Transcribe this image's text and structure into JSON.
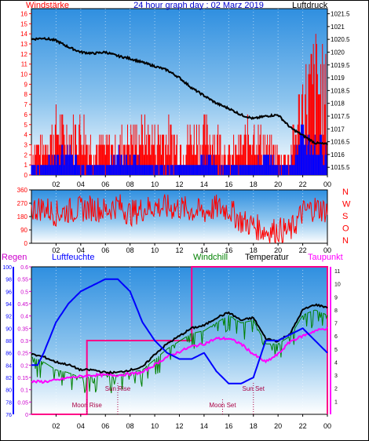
{
  "chart_data": [
    {
      "type": "line",
      "title": "24 hour graph day : 02 Marz 2019",
      "left_label": "Windstärke",
      "right_label": "Luftdruck",
      "x_ticks": [
        "02",
        "04",
        "06",
        "08",
        "10",
        "12",
        "14",
        "16",
        "18",
        "20",
        "22",
        "00"
      ],
      "y_left_ticks": [
        "0",
        "1",
        "2",
        "3",
        "4",
        "5",
        "6",
        "7",
        "8",
        "9",
        "10",
        "11",
        "12",
        "13",
        "14",
        "15",
        "16"
      ],
      "y_left_range": [
        0,
        16.5
      ],
      "y_right_ticks": [
        "1015.5",
        "1016",
        "1016.5",
        "1017",
        "1017.5",
        "1018",
        "1018.5",
        "1019",
        "1019.5",
        "1020",
        "1020.5",
        "1021",
        "1021.5"
      ],
      "y_right_range": [
        1015.2,
        1021.7
      ],
      "series": [
        {
          "name": "",
          "color": "#000000",
          "axis": "right",
          "x": [
            0,
            1,
            2,
            3,
            4,
            5,
            6,
            7,
            8,
            9,
            10,
            11,
            12,
            13,
            14,
            15,
            16,
            17,
            18,
            19,
            20,
            21,
            22,
            23,
            24
          ],
          "values": [
            1020.5,
            1020.55,
            1020.45,
            1020.2,
            1020.0,
            1019.95,
            1020.0,
            1019.85,
            1019.75,
            1019.6,
            1019.45,
            1019.3,
            1019.0,
            1018.6,
            1018.3,
            1018.0,
            1017.8,
            1017.55,
            1017.4,
            1017.5,
            1017.55,
            1017.05,
            1016.75,
            1016.45,
            1016.4
          ]
        },
        {
          "name": "",
          "color": "#ff0000",
          "axis": "left",
          "x": [
            0,
            1,
            2,
            3,
            4,
            5,
            6,
            7,
            8,
            9,
            10,
            11,
            12,
            13,
            14,
            15,
            16,
            17,
            18,
            19,
            20,
            21,
            22,
            23,
            24
          ],
          "values": [
            3,
            3,
            5,
            4,
            5,
            3,
            3,
            3,
            4,
            4,
            4,
            4,
            3,
            4,
            4,
            4,
            2,
            3,
            5,
            3,
            2,
            2,
            8,
            10,
            8
          ]
        },
        {
          "name": "",
          "color": "#0000ff",
          "axis": "left",
          "x": [
            0,
            1,
            2,
            3,
            4,
            5,
            6,
            7,
            8,
            9,
            10,
            11,
            12,
            13,
            14,
            15,
            16,
            17,
            18,
            19,
            20,
            21,
            22,
            23,
            24
          ],
          "values": [
            1,
            1,
            2,
            2,
            1,
            1,
            1,
            2,
            2,
            1,
            1,
            1,
            1,
            1,
            2,
            1,
            1,
            1,
            1,
            2,
            1,
            1,
            4,
            3,
            3
          ]
        }
      ]
    },
    {
      "type": "line",
      "x_ticks": [
        "02",
        "04",
        "06",
        "08",
        "10",
        "12",
        "14",
        "16",
        "18",
        "20",
        "22",
        "00"
      ],
      "y_ticks": [
        "0",
        "90",
        "180",
        "270",
        "360"
      ],
      "y_range": [
        0,
        360
      ],
      "right_labels": [
        "N",
        "W",
        "S",
        "O",
        "N"
      ],
      "series": [
        {
          "name": "",
          "color": "#ff0000",
          "x": [
            0,
            1,
            2,
            3,
            4,
            5,
            6,
            7,
            8,
            9,
            10,
            11,
            12,
            13,
            14,
            15,
            16,
            17,
            18,
            19,
            20,
            21,
            22,
            23,
            24
          ],
          "values": [
            230,
            240,
            200,
            220,
            230,
            240,
            220,
            260,
            200,
            230,
            250,
            240,
            240,
            220,
            210,
            240,
            230,
            150,
            120,
            80,
            90,
            80,
            210,
            240,
            220
          ]
        }
      ]
    },
    {
      "type": "line",
      "labels": {
        "regen": "Regen",
        "luftfeuchte": "Luftfeuchte",
        "windchill": "Windchill",
        "temperatur": "Temperatur",
        "taupunkt": "Taupunkt"
      },
      "x_ticks": [
        "02",
        "04",
        "06",
        "08",
        "10",
        "12",
        "14",
        "16",
        "18",
        "20",
        "22",
        "00"
      ],
      "y_regen_ticks": [
        "0",
        "0.05",
        "0.1",
        "0.15",
        "0.2",
        "0.25",
        "0.3",
        "0.35",
        "0.4",
        "0.45",
        "0.5",
        "0.55",
        "0.6"
      ],
      "y_regen_range": [
        0,
        0.6
      ],
      "y_humidity_ticks": [
        "76",
        "78",
        "80",
        "82",
        "84",
        "86",
        "88",
        "90",
        "92",
        "94",
        "96",
        "98",
        "100"
      ],
      "y_humidity_range": [
        76,
        100
      ],
      "y_temp_ticks": [
        "1",
        "2",
        "3",
        "4",
        "5",
        "6",
        "7",
        "8",
        "9",
        "10",
        "11"
      ],
      "y_temp_range": [
        0,
        11.3
      ],
      "annotations": [
        "Moon Rise",
        "Sun Rise",
        "Moon Set",
        "Sun Set"
      ],
      "series": [
        {
          "name": "Luftfeuchte",
          "color": "#0000ff",
          "axis": "humidity",
          "x": [
            0,
            0.5,
            1,
            2,
            3,
            4,
            5,
            6,
            7,
            8,
            9,
            10,
            11,
            12,
            13,
            14,
            15,
            16,
            17,
            18,
            19,
            20,
            21,
            22,
            23,
            24
          ],
          "values": [
            84,
            84,
            86,
            91,
            94,
            96,
            97,
            98,
            98,
            96,
            91,
            88,
            86,
            85,
            85,
            86,
            83,
            81,
            81,
            82,
            88,
            88,
            89,
            90,
            88,
            86
          ]
        },
        {
          "name": "Temperatur",
          "color": "#000000",
          "axis": "temp",
          "x": [
            0,
            1,
            2,
            3,
            4,
            5,
            6,
            7,
            8,
            9,
            10,
            11,
            12,
            13,
            14,
            15,
            16,
            17,
            18,
            19,
            20,
            21,
            22,
            23,
            24
          ],
          "values": [
            4.6,
            4.4,
            4.0,
            3.8,
            3.4,
            3.4,
            3.2,
            3.2,
            3.4,
            3.6,
            4.6,
            5.4,
            6.0,
            6.6,
            6.8,
            7.4,
            7.8,
            7.2,
            7.4,
            5.8,
            5.6,
            6.2,
            8.0,
            8.4,
            8.2
          ]
        },
        {
          "name": "Windchill",
          "color": "#008000",
          "axis": "temp",
          "x": [
            0,
            1,
            2,
            3,
            4,
            5,
            6,
            7,
            8,
            9,
            10,
            11,
            12,
            13,
            14,
            15,
            16,
            17,
            18,
            19,
            20,
            21,
            22,
            23,
            24
          ],
          "values": [
            4.4,
            4.0,
            3.4,
            3.2,
            2.8,
            3.0,
            3.0,
            3.0,
            3.2,
            3.4,
            4.2,
            5.0,
            5.6,
            6.2,
            6.4,
            7.0,
            7.6,
            7.0,
            7.2,
            5.4,
            5.4,
            6.0,
            7.6,
            8.0,
            7.6
          ]
        },
        {
          "name": "Taupunkt",
          "color": "#ff00ff",
          "axis": "temp",
          "x": [
            0,
            1,
            2,
            3,
            4,
            5,
            6,
            7,
            8,
            9,
            10,
            11,
            12,
            13,
            14,
            15,
            16,
            17,
            18,
            19,
            20,
            21,
            22,
            23,
            24
          ],
          "values": [
            2.5,
            2.5,
            2.6,
            2.8,
            2.9,
            3.0,
            3.0,
            3.0,
            3.1,
            3.2,
            3.8,
            4.4,
            4.8,
            5.2,
            5.4,
            5.8,
            5.8,
            5.4,
            4.6,
            4.0,
            4.6,
            5.6,
            6.0,
            6.4,
            6.6
          ]
        },
        {
          "name": "Regen",
          "color": "#ff0088",
          "axis": "regen",
          "x": [
            0,
            4.5,
            4.5,
            13,
            13,
            24
          ],
          "values": [
            0,
            0,
            0.3,
            0.3,
            0.6,
            0.6
          ]
        }
      ]
    }
  ]
}
